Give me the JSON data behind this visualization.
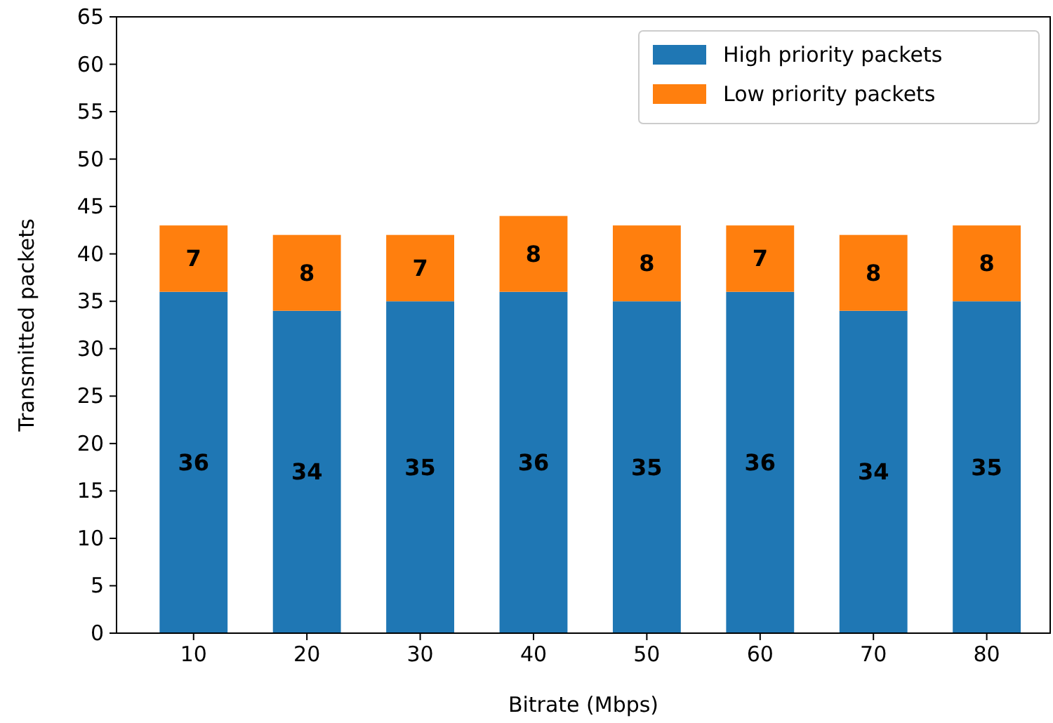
{
  "chart_data": {
    "type": "bar",
    "stacked": true,
    "xlabel": "Bitrate (Mbps)",
    "ylabel": "Transmitted packets",
    "categories": [
      "10",
      "20",
      "30",
      "40",
      "50",
      "60",
      "70",
      "80"
    ],
    "series": [
      {
        "name": "High priority packets",
        "color": "#1f77b4",
        "values": [
          36,
          34,
          35,
          36,
          35,
          36,
          34,
          35
        ]
      },
      {
        "name": "Low priority packets",
        "color": "#ff7f0e",
        "values": [
          7,
          8,
          7,
          8,
          8,
          7,
          8,
          8
        ]
      }
    ],
    "ylim": [
      0,
      65
    ],
    "yticks": [
      0,
      5,
      10,
      15,
      20,
      25,
      30,
      35,
      40,
      45,
      50,
      55,
      60,
      65
    ],
    "data_labels": true,
    "legend": "top right",
    "grid": false
  }
}
